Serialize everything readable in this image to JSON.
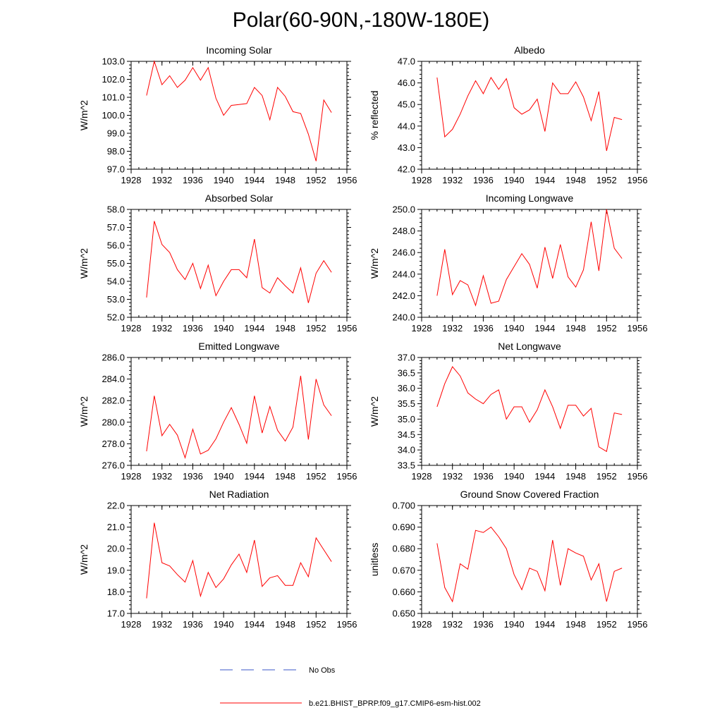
{
  "page_title": "Polar(60-90N,-180W-180E)",
  "legend": [
    {
      "label": "No Obs",
      "color": "#3b57c8",
      "style": "dashed"
    },
    {
      "label": "b.e21.BHIST_BPRP.f09_g17.CMIP6-esm-hist.002",
      "color": "#ff0000",
      "style": "solid"
    }
  ],
  "chart_data": [
    {
      "type": "line",
      "title": "Incoming Solar",
      "ylabel": "W/m^2",
      "xlim": [
        1928,
        1956
      ],
      "ylim": [
        97.0,
        103.0
      ],
      "xticks": [
        1928,
        1932,
        1936,
        1940,
        1944,
        1948,
        1952,
        1956
      ],
      "yticks": [
        97.0,
        98.0,
        99.0,
        100.0,
        101.0,
        102.0,
        103.0
      ],
      "ytick_labels": [
        "97.0",
        "98.0",
        "99.0",
        "100.0",
        "101.0",
        "102.0",
        "103.0"
      ],
      "x": [
        1930,
        1931,
        1932,
        1933,
        1934,
        1935,
        1936,
        1937,
        1938,
        1939,
        1940,
        1941,
        1942,
        1943,
        1944,
        1945,
        1946,
        1947,
        1948,
        1949,
        1950,
        1951,
        1952,
        1953,
        1954
      ],
      "series": [
        {
          "name": "b.e21.BHIST_BPRP.f09_g17.CMIP6-esm-hist.002",
          "color": "#ff0000",
          "values": [
            101.1,
            103.0,
            101.7,
            102.2,
            101.55,
            101.95,
            102.65,
            101.95,
            102.65,
            100.95,
            100.0,
            100.55,
            100.6,
            100.65,
            101.55,
            101.1,
            99.75,
            101.55,
            101.05,
            100.2,
            100.1,
            98.95,
            97.45,
            100.85,
            100.15
          ]
        }
      ]
    },
    {
      "type": "line",
      "title": "Albedo",
      "ylabel": "% reflected",
      "xlim": [
        1928,
        1956
      ],
      "ylim": [
        42.0,
        47.0
      ],
      "xticks": [
        1928,
        1932,
        1936,
        1940,
        1944,
        1948,
        1952,
        1956
      ],
      "yticks": [
        42.0,
        43.0,
        44.0,
        45.0,
        46.0,
        47.0
      ],
      "ytick_labels": [
        "42.0",
        "43.0",
        "44.0",
        "45.0",
        "46.0",
        "47.0"
      ],
      "x": [
        1930,
        1931,
        1932,
        1933,
        1934,
        1935,
        1936,
        1937,
        1938,
        1939,
        1940,
        1941,
        1942,
        1943,
        1944,
        1945,
        1946,
        1947,
        1948,
        1949,
        1950,
        1951,
        1952,
        1953,
        1954
      ],
      "series": [
        {
          "name": "b.e21.BHIST_BPRP.f09_g17.CMIP6-esm-hist.002",
          "color": "#ff0000",
          "values": [
            46.25,
            43.5,
            43.85,
            44.55,
            45.4,
            46.1,
            45.5,
            46.25,
            45.7,
            46.2,
            44.85,
            44.55,
            44.75,
            45.25,
            43.75,
            46.0,
            45.5,
            45.5,
            46.05,
            45.35,
            44.25,
            45.6,
            42.85,
            44.4,
            44.3
          ]
        }
      ]
    },
    {
      "type": "line",
      "title": "Absorbed Solar",
      "ylabel": "W/m^2",
      "xlim": [
        1928,
        1956
      ],
      "ylim": [
        52.0,
        58.0
      ],
      "xticks": [
        1928,
        1932,
        1936,
        1940,
        1944,
        1948,
        1952,
        1956
      ],
      "yticks": [
        52.0,
        53.0,
        54.0,
        55.0,
        56.0,
        57.0,
        58.0
      ],
      "ytick_labels": [
        "52.0",
        "53.0",
        "54.0",
        "55.0",
        "56.0",
        "57.0",
        "58.0"
      ],
      "x": [
        1930,
        1931,
        1932,
        1933,
        1934,
        1935,
        1936,
        1937,
        1938,
        1939,
        1940,
        1941,
        1942,
        1943,
        1944,
        1945,
        1946,
        1947,
        1948,
        1949,
        1950,
        1951,
        1952,
        1953,
        1954
      ],
      "series": [
        {
          "name": "b.e21.BHIST_BPRP.f09_g17.CMIP6-esm-hist.002",
          "color": "#ff0000",
          "values": [
            53.1,
            57.35,
            56.05,
            55.6,
            54.65,
            54.1,
            55.0,
            53.6,
            54.9,
            53.2,
            54.0,
            54.65,
            54.65,
            54.2,
            56.35,
            53.65,
            53.35,
            54.2,
            53.75,
            53.35,
            54.75,
            52.8,
            54.45,
            55.15,
            54.5
          ]
        }
      ]
    },
    {
      "type": "line",
      "title": "Incoming Longwave",
      "ylabel": "W/m^2",
      "xlim": [
        1928,
        1956
      ],
      "ylim": [
        240.0,
        250.0
      ],
      "xticks": [
        1928,
        1932,
        1936,
        1940,
        1944,
        1948,
        1952,
        1956
      ],
      "yticks": [
        240.0,
        242.0,
        244.0,
        246.0,
        248.0,
        250.0
      ],
      "ytick_labels": [
        "240.0",
        "242.0",
        "244.0",
        "246.0",
        "248.0",
        "250.0"
      ],
      "x": [
        1930,
        1931,
        1932,
        1933,
        1934,
        1935,
        1936,
        1937,
        1938,
        1939,
        1940,
        1941,
        1942,
        1943,
        1944,
        1945,
        1946,
        1947,
        1948,
        1949,
        1950,
        1951,
        1952,
        1953,
        1954
      ],
      "series": [
        {
          "name": "b.e21.BHIST_BPRP.f09_g17.CMIP6-esm-hist.002",
          "color": "#ff0000",
          "values": [
            242.0,
            246.3,
            242.1,
            243.4,
            243.0,
            241.1,
            243.85,
            241.3,
            241.5,
            243.5,
            244.7,
            245.9,
            244.9,
            242.7,
            246.5,
            243.6,
            246.75,
            243.75,
            242.8,
            244.4,
            248.85,
            244.3,
            250.0,
            246.4,
            245.45
          ]
        }
      ]
    },
    {
      "type": "line",
      "title": "Emitted Longwave",
      "ylabel": "W/m^2",
      "xlim": [
        1928,
        1956
      ],
      "ylim": [
        276.0,
        286.0
      ],
      "xticks": [
        1928,
        1932,
        1936,
        1940,
        1944,
        1948,
        1952,
        1956
      ],
      "yticks": [
        276.0,
        278.0,
        280.0,
        282.0,
        284.0,
        286.0
      ],
      "ytick_labels": [
        "276.0",
        "278.0",
        "280.0",
        "282.0",
        "284.0",
        "286.0"
      ],
      "x": [
        1930,
        1931,
        1932,
        1933,
        1934,
        1935,
        1936,
        1937,
        1938,
        1939,
        1940,
        1941,
        1942,
        1943,
        1944,
        1945,
        1946,
        1947,
        1948,
        1949,
        1950,
        1951,
        1952,
        1953,
        1954
      ],
      "series": [
        {
          "name": "b.e21.BHIST_BPRP.f09_g17.CMIP6-esm-hist.002",
          "color": "#ff0000",
          "values": [
            277.3,
            282.45,
            278.75,
            279.8,
            278.8,
            276.7,
            279.35,
            277.05,
            277.4,
            278.45,
            280.0,
            281.35,
            279.8,
            278.05,
            282.45,
            279.0,
            281.45,
            279.25,
            278.25,
            279.55,
            284.3,
            278.4,
            284.0,
            281.6,
            280.6
          ]
        }
      ]
    },
    {
      "type": "line",
      "title": "Net Longwave",
      "ylabel": "W/m^2",
      "xlim": [
        1928,
        1956
      ],
      "ylim": [
        33.5,
        37.0
      ],
      "xticks": [
        1928,
        1932,
        1936,
        1940,
        1944,
        1948,
        1952,
        1956
      ],
      "yticks": [
        33.5,
        34.0,
        34.5,
        35.0,
        35.5,
        36.0,
        36.5,
        37.0
      ],
      "ytick_labels": [
        "33.5",
        "34.0",
        "34.5",
        "35.0",
        "35.5",
        "36.0",
        "36.5",
        "37.0"
      ],
      "x": [
        1930,
        1931,
        1932,
        1933,
        1934,
        1935,
        1936,
        1937,
        1938,
        1939,
        1940,
        1941,
        1942,
        1943,
        1944,
        1945,
        1946,
        1947,
        1948,
        1949,
        1950,
        1951,
        1952,
        1953,
        1954
      ],
      "series": [
        {
          "name": "b.e21.BHIST_BPRP.f09_g17.CMIP6-esm-hist.002",
          "color": "#ff0000",
          "values": [
            35.4,
            36.15,
            36.7,
            36.4,
            35.85,
            35.65,
            35.5,
            35.8,
            35.95,
            35.0,
            35.4,
            35.4,
            34.9,
            35.3,
            35.95,
            35.4,
            34.7,
            35.45,
            35.45,
            35.1,
            35.35,
            34.1,
            33.95,
            35.2,
            35.15
          ]
        }
      ]
    },
    {
      "type": "line",
      "title": "Net Radiation",
      "ylabel": "W/m^2",
      "xlim": [
        1928,
        1956
      ],
      "ylim": [
        17.0,
        22.0
      ],
      "xticks": [
        1928,
        1932,
        1936,
        1940,
        1944,
        1948,
        1952,
        1956
      ],
      "yticks": [
        17.0,
        18.0,
        19.0,
        20.0,
        21.0,
        22.0
      ],
      "ytick_labels": [
        "17.0",
        "18.0",
        "19.0",
        "20.0",
        "21.0",
        "22.0"
      ],
      "x": [
        1930,
        1931,
        1932,
        1933,
        1934,
        1935,
        1936,
        1937,
        1938,
        1939,
        1940,
        1941,
        1942,
        1943,
        1944,
        1945,
        1946,
        1947,
        1948,
        1949,
        1950,
        1951,
        1952,
        1953,
        1954
      ],
      "series": [
        {
          "name": "b.e21.BHIST_BPRP.f09_g17.CMIP6-esm-hist.002",
          "color": "#ff0000",
          "values": [
            17.7,
            21.2,
            19.35,
            19.2,
            18.8,
            18.45,
            19.45,
            17.8,
            18.9,
            18.2,
            18.6,
            19.25,
            19.75,
            18.9,
            20.4,
            18.25,
            18.65,
            18.75,
            18.3,
            18.3,
            19.35,
            18.7,
            20.5,
            19.95,
            19.4
          ]
        }
      ]
    },
    {
      "type": "line",
      "title": "Ground Snow Covered Fraction",
      "ylabel": "unitless",
      "xlim": [
        1928,
        1956
      ],
      "ylim": [
        0.65,
        0.7
      ],
      "xticks": [
        1928,
        1932,
        1936,
        1940,
        1944,
        1948,
        1952,
        1956
      ],
      "yticks": [
        0.65,
        0.66,
        0.67,
        0.68,
        0.69,
        0.7
      ],
      "ytick_labels": [
        "0.650",
        "0.660",
        "0.670",
        "0.680",
        "0.690",
        "0.700"
      ],
      "x": [
        1930,
        1931,
        1932,
        1933,
        1934,
        1935,
        1936,
        1937,
        1938,
        1939,
        1940,
        1941,
        1942,
        1943,
        1944,
        1945,
        1946,
        1947,
        1948,
        1949,
        1950,
        1951,
        1952,
        1953,
        1954
      ],
      "series": [
        {
          "name": "b.e21.BHIST_BPRP.f09_g17.CMIP6-esm-hist.002",
          "color": "#ff0000",
          "values": [
            0.6825,
            0.662,
            0.6555,
            0.673,
            0.6705,
            0.6885,
            0.6875,
            0.69,
            0.6855,
            0.68,
            0.668,
            0.661,
            0.671,
            0.6695,
            0.6605,
            0.684,
            0.663,
            0.68,
            0.678,
            0.6765,
            0.6655,
            0.673,
            0.6555,
            0.6695,
            0.671
          ]
        }
      ]
    }
  ]
}
